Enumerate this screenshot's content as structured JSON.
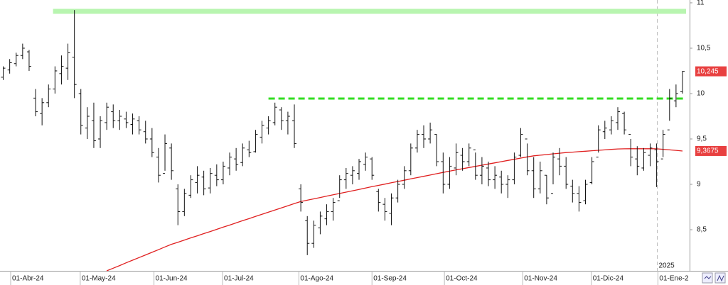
{
  "chart_data": {
    "type": "ohlc",
    "ylim": [
      8.047,
      11.031
    ],
    "yticks": [
      11,
      {
        "value": 10.5,
        "label": "10,5"
      },
      10,
      {
        "value": 9.5,
        "label": "9,5"
      },
      9,
      {
        "value": 8.5,
        "label": "8,5"
      }
    ],
    "xlim": [
      -0.5,
      106.1
    ],
    "xticks": [
      {
        "value": 1.15,
        "label": "01-Abr-24"
      },
      {
        "value": 11.9,
        "label": "01-May-24"
      },
      {
        "value": 23.3,
        "label": "01-Jun-24"
      },
      {
        "value": 33.9,
        "label": "01-Jul-24"
      },
      {
        "value": 45.7,
        "label": "01-Ago-24"
      },
      {
        "value": 57,
        "label": "01-Sep-24"
      },
      {
        "value": 68.2,
        "label": "01-Oct-24"
      },
      {
        "value": 80.3,
        "label": "01-Nov-24"
      },
      {
        "value": 90.9,
        "label": "01-Dic-24"
      },
      {
        "value": 101.2,
        "label": "01-Ene-2"
      }
    ],
    "year_marker": {
      "value": 101.1,
      "label": "2025"
    },
    "ohlc": {
      "color": "#111111",
      "open": [
        10.18,
        10.26,
        10.33,
        10.42,
        10.46,
        9.95,
        9.78,
        9.9,
        10.05,
        10.22,
        10.28,
        10.4,
        10.0,
        9.62,
        9.7,
        9.5,
        9.68,
        9.8,
        9.7,
        9.72,
        9.66,
        9.7,
        9.58,
        9.5,
        9.3,
        9.12,
        9.4,
        8.95,
        8.7,
        8.88,
        9.02,
        9.08,
        8.96,
        9.1,
        9.05,
        9.18,
        9.28,
        9.24,
        9.38,
        9.36,
        9.52,
        9.62,
        9.68,
        9.82,
        9.7,
        9.7,
        8.95,
        8.6,
        8.35,
        8.52,
        8.62,
        8.7,
        8.82,
        9.05,
        9.1,
        9.12,
        9.22,
        9.28,
        8.92,
        8.78,
        8.68,
        8.85,
        9.0,
        9.15,
        9.4,
        9.55,
        9.5,
        9.55,
        9.25,
        9.0,
        9.18,
        9.32,
        9.25,
        9.38,
        9.1,
        9.18,
        9.05,
        9.08,
        9.0,
        9.05,
        9.32,
        9.5,
        9.15,
        8.95,
        9.1,
        8.9,
        9.28,
        9.2,
        8.98,
        8.9,
        8.82,
        9.02,
        9.3,
        9.58,
        9.6,
        9.68,
        9.78,
        9.55,
        9.28,
        9.18,
        9.32,
        9.38,
        9.28,
        9.6,
        9.92,
        10.02
      ],
      "high": [
        10.3,
        10.38,
        10.45,
        10.55,
        10.48,
        10.05,
        9.95,
        10.1,
        10.3,
        10.42,
        10.55,
        10.92,
        10.05,
        9.85,
        9.9,
        9.75,
        9.9,
        9.88,
        9.82,
        9.8,
        9.78,
        9.75,
        9.7,
        9.62,
        9.4,
        9.55,
        9.45,
        9.0,
        8.95,
        9.1,
        9.2,
        9.15,
        9.18,
        9.22,
        9.25,
        9.35,
        9.4,
        9.45,
        9.48,
        9.6,
        9.7,
        9.75,
        9.9,
        9.85,
        9.8,
        9.88,
        9.0,
        8.65,
        8.6,
        8.7,
        8.78,
        8.85,
        9.1,
        9.18,
        9.2,
        9.28,
        9.35,
        9.3,
        8.95,
        8.85,
        8.9,
        9.05,
        9.2,
        9.45,
        9.6,
        9.65,
        9.68,
        9.55,
        9.35,
        9.3,
        9.45,
        9.4,
        9.45,
        9.35,
        9.3,
        9.25,
        9.2,
        9.15,
        9.1,
        9.35,
        9.62,
        9.45,
        9.3,
        9.25,
        9.1,
        9.35,
        9.4,
        9.3,
        9.05,
        8.98,
        9.05,
        9.3,
        9.65,
        9.7,
        9.75,
        9.85,
        9.8,
        9.5,
        9.42,
        9.4,
        9.45,
        9.45,
        9.6,
        10.05,
        10.1,
        10.25
      ],
      "low": [
        10.15,
        10.22,
        10.3,
        10.38,
        10.25,
        9.75,
        9.65,
        9.85,
        10.0,
        10.1,
        10.15,
        9.95,
        9.55,
        9.5,
        9.4,
        9.4,
        9.6,
        9.62,
        9.6,
        9.62,
        9.55,
        9.55,
        9.45,
        9.3,
        9.02,
        9.15,
        9.05,
        8.55,
        8.65,
        8.85,
        8.9,
        8.88,
        8.9,
        8.98,
        9.0,
        9.1,
        9.15,
        9.2,
        9.3,
        9.35,
        9.45,
        9.55,
        9.65,
        9.6,
        9.55,
        9.4,
        8.7,
        8.22,
        8.3,
        8.45,
        8.55,
        8.6,
        8.85,
        8.95,
        9.0,
        9.05,
        9.15,
        9.05,
        8.7,
        8.6,
        8.55,
        8.8,
        8.95,
        9.1,
        9.35,
        9.4,
        9.45,
        9.2,
        8.9,
        8.95,
        9.1,
        9.15,
        9.2,
        9.05,
        9.0,
        8.98,
        8.95,
        8.9,
        8.85,
        9.0,
        9.3,
        9.1,
        8.85,
        8.9,
        8.78,
        9.0,
        9.1,
        8.95,
        8.8,
        8.7,
        8.78,
        9.0,
        9.35,
        9.5,
        9.55,
        9.6,
        9.55,
        9.2,
        9.1,
        9.15,
        9.2,
        8.97,
        9.3,
        9.7,
        9.85,
        10.0
      ],
      "close": [
        10.28,
        10.34,
        10.42,
        10.5,
        10.3,
        9.8,
        9.9,
        10.05,
        10.25,
        10.3,
        10.45,
        10.1,
        9.65,
        9.75,
        9.48,
        9.7,
        9.85,
        9.7,
        9.75,
        9.68,
        9.72,
        9.6,
        9.5,
        9.35,
        9.1,
        9.45,
        9.15,
        8.7,
        8.9,
        9.05,
        9.1,
        8.95,
        9.12,
        9.05,
        9.2,
        9.3,
        9.22,
        9.4,
        9.35,
        9.55,
        9.65,
        9.7,
        9.85,
        9.7,
        9.75,
        9.45,
        8.8,
        8.35,
        8.55,
        8.65,
        8.7,
        8.8,
        9.05,
        9.12,
        9.15,
        9.25,
        9.3,
        9.1,
        8.8,
        8.7,
        8.85,
        9.0,
        9.15,
        9.4,
        9.55,
        9.5,
        9.6,
        9.25,
        9.0,
        9.2,
        9.35,
        9.25,
        9.4,
        9.1,
        9.2,
        9.05,
        9.1,
        9.0,
        9.05,
        9.3,
        9.55,
        9.15,
        8.95,
        9.15,
        8.85,
        9.3,
        9.2,
        9.0,
        8.9,
        8.8,
        9.0,
        9.25,
        9.6,
        9.62,
        9.7,
        9.8,
        9.6,
        9.3,
        9.2,
        9.35,
        9.4,
        9.25,
        9.55,
        9.95,
        10.0,
        10.245
      ]
    },
    "moving_average": {
      "color": "#e02020",
      "values": [
        null,
        null,
        null,
        null,
        null,
        null,
        null,
        null,
        null,
        null,
        null,
        null,
        null,
        null,
        null,
        null,
        8.047,
        8.076,
        8.105,
        8.135,
        8.164,
        8.193,
        8.222,
        8.251,
        8.28,
        8.31,
        8.339,
        8.362,
        8.386,
        8.41,
        8.433,
        8.457,
        8.48,
        8.504,
        8.528,
        8.551,
        8.575,
        8.599,
        8.622,
        8.646,
        8.67,
        8.693,
        8.717,
        8.741,
        8.764,
        8.788,
        8.81,
        8.825,
        8.84,
        8.855,
        8.87,
        8.885,
        8.899,
        8.914,
        8.929,
        8.944,
        8.959,
        8.974,
        8.988,
        9.002,
        9.017,
        9.031,
        9.045,
        9.06,
        9.074,
        9.088,
        9.102,
        9.117,
        9.131,
        9.145,
        9.159,
        9.172,
        9.185,
        9.198,
        9.211,
        9.224,
        9.237,
        9.25,
        9.263,
        9.276,
        9.289,
        9.302,
        9.314,
        9.321,
        9.328,
        9.336,
        9.343,
        9.35,
        9.355,
        9.36,
        9.365,
        9.37,
        9.375,
        9.38,
        9.385,
        9.39,
        9.391,
        9.392,
        9.392,
        9.392,
        9.392,
        9.391,
        9.386,
        9.38,
        9.374,
        9.3675
      ]
    },
    "levels": [
      {
        "value": 10.906,
        "start": 7.7,
        "color": "#b8f5b0",
        "style": "band"
      },
      {
        "value": 9.945,
        "start": 41.0,
        "color": "#33dd22",
        "style": "dashed"
      }
    ],
    "price_labels": [
      {
        "value": 10.245,
        "label": "10,245",
        "color": "#e84040"
      },
      {
        "value": 9.3675,
        "label": "9,3675",
        "color": "#e84040"
      }
    ]
  }
}
